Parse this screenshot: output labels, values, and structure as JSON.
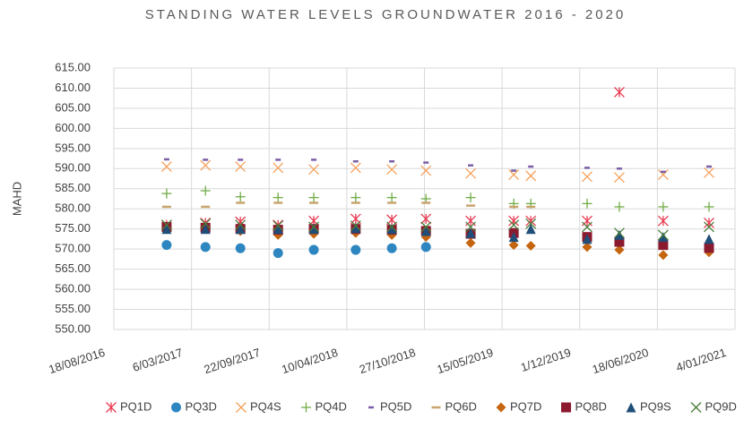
{
  "chart_data": {
    "type": "scatter",
    "title": "STANDING WATER LEVELS GROUNDWATER    2016 - 2020",
    "y_label": "MAHD",
    "x": [
      42736,
      42836,
      42926,
      43023,
      43115,
      43223,
      43316,
      43404,
      43519,
      43630,
      43674,
      43819,
      43902,
      44015,
      44133
    ],
    "xlim": [
      42600,
      44200
    ],
    "xticks": [
      {
        "value": 42600,
        "label": "18/08/2016"
      },
      {
        "value": 42800,
        "label": "6/03/2017"
      },
      {
        "value": 43000,
        "label": "22/09/2017"
      },
      {
        "value": 43200,
        "label": "10/04/2018"
      },
      {
        "value": 43400,
        "label": "27/10/2018"
      },
      {
        "value": 43600,
        "label": "15/05/2019"
      },
      {
        "value": 43800,
        "label": "1/12/2019"
      },
      {
        "value": 44000,
        "label": "18/06/2020"
      },
      {
        "value": 44200,
        "label": "4/01/2021"
      }
    ],
    "ylim": [
      550,
      615
    ],
    "yticks": [
      {
        "value": 550,
        "label": "550.00"
      },
      {
        "value": 555,
        "label": "555.00"
      },
      {
        "value": 560,
        "label": "560.00"
      },
      {
        "value": 565,
        "label": "565.00"
      },
      {
        "value": 570,
        "label": "570.00"
      },
      {
        "value": 575,
        "label": "575.00"
      },
      {
        "value": 580,
        "label": "580.00"
      },
      {
        "value": 585,
        "label": "585.00"
      },
      {
        "value": 590,
        "label": "590.00"
      },
      {
        "value": 595,
        "label": "595.00"
      },
      {
        "value": 600,
        "label": "600.00"
      },
      {
        "value": 605,
        "label": "605.00"
      },
      {
        "value": 610,
        "label": "610.00"
      },
      {
        "value": 615,
        "label": "615.00"
      }
    ],
    "grid": true,
    "legend": "bottom",
    "series": [
      {
        "name": "PQ1D",
        "color": "#e8384f",
        "marker": "asterisk",
        "values": [
          576,
          576.5,
          576.8,
          576,
          577,
          577.5,
          577.3,
          577.5,
          577,
          577,
          577,
          577,
          609,
          577,
          576.5
        ]
      },
      {
        "name": "PQ3D",
        "color": "#2e86c1",
        "marker": "circle",
        "values": [
          571,
          570.5,
          570.2,
          569,
          569.8,
          569.8,
          570.2,
          570.5,
          null,
          null,
          null,
          null,
          null,
          null,
          null
        ]
      },
      {
        "name": "PQ4S",
        "color": "#f5a05a",
        "marker": "x",
        "values": [
          590.5,
          590.8,
          590.5,
          590.2,
          589.8,
          590.2,
          589.8,
          589.5,
          588.8,
          588.5,
          588.2,
          588,
          587.8,
          588.5,
          589
        ]
      },
      {
        "name": "PQ4D",
        "color": "#70ad47",
        "marker": "plus",
        "values": [
          583.8,
          584.5,
          583,
          582.8,
          582.8,
          582.8,
          582.8,
          582.5,
          582.8,
          581.3,
          581.3,
          581.3,
          580.5,
          580.5,
          580.5
        ]
      },
      {
        "name": "PQ5D",
        "color": "#7b5ea7",
        "marker": "dash",
        "values": [
          592.3,
          592.2,
          592.2,
          592.2,
          592.2,
          591.8,
          591.8,
          591.5,
          590.8,
          589.5,
          590.5,
          590.2,
          590,
          589.2,
          590.5
        ]
      },
      {
        "name": "PQ6D",
        "color": "#c9a46d",
        "marker": "longdash",
        "values": [
          580.5,
          580.5,
          581.5,
          581.5,
          581.5,
          581.5,
          581.5,
          581.5,
          580.8,
          580.5,
          580.5,
          null,
          null,
          null,
          null
        ]
      },
      {
        "name": "PQ7D",
        "color": "#c5650f",
        "marker": "diamond",
        "values": [
          575,
          575,
          574.5,
          573.5,
          573.8,
          574,
          573.5,
          573,
          571.5,
          571,
          570.8,
          570.5,
          569.8,
          568.5,
          569.2
        ]
      },
      {
        "name": "PQ8D",
        "color": "#8b1a2e",
        "marker": "square",
        "values": [
          575.5,
          575.3,
          575,
          574.8,
          575,
          575,
          574.8,
          574.5,
          573.8,
          574,
          null,
          573,
          571.8,
          571,
          570.3
        ]
      },
      {
        "name": "PQ9S",
        "color": "#1f4e79",
        "marker": "triangle",
        "values": [
          575,
          575,
          575,
          575,
          575,
          575.2,
          575,
          574.5,
          574,
          573,
          575,
          572.5,
          573.5,
          573,
          572.5
        ]
      },
      {
        "name": "PQ9D",
        "color": "#4a7d3a",
        "marker": "x",
        "values": [
          576,
          576.3,
          576,
          575.8,
          575.5,
          575.8,
          575.5,
          575.5,
          575.5,
          576,
          576.3,
          575.5,
          574,
          573.5,
          575.5
        ]
      }
    ]
  }
}
